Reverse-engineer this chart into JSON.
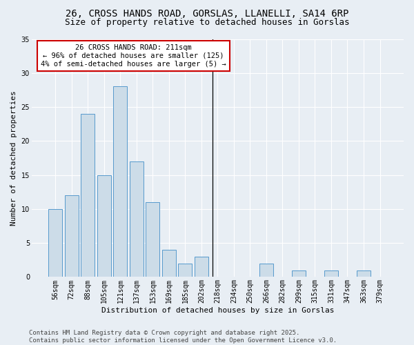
{
  "title1": "26, CROSS HANDS ROAD, GORSLAS, LLANELLI, SA14 6RP",
  "title2": "Size of property relative to detached houses in Gorslas",
  "xlabel": "Distribution of detached houses by size in Gorslas",
  "ylabel": "Number of detached properties",
  "bar_labels": [
    "56sqm",
    "72sqm",
    "88sqm",
    "105sqm",
    "121sqm",
    "137sqm",
    "153sqm",
    "169sqm",
    "185sqm",
    "202sqm",
    "218sqm",
    "234sqm",
    "250sqm",
    "266sqm",
    "282sqm",
    "299sqm",
    "315sqm",
    "331sqm",
    "347sqm",
    "363sqm",
    "379sqm"
  ],
  "bar_values": [
    10,
    12,
    24,
    15,
    28,
    17,
    11,
    4,
    2,
    3,
    0,
    0,
    0,
    2,
    0,
    1,
    0,
    1,
    0,
    1,
    0
  ],
  "bar_color": "#ccdce8",
  "bar_edge_color": "#5599cc",
  "background_color": "#e8eef4",
  "grid_color": "#ffffff",
  "annotation_text": "26 CROSS HANDS ROAD: 211sqm\n← 96% of detached houses are smaller (125)\n4% of semi-detached houses are larger (5) →",
  "annotation_box_color": "#ffffff",
  "annotation_box_edge_color": "#cc0000",
  "vline_x_index": 9.67,
  "ylim": [
    0,
    35
  ],
  "yticks": [
    0,
    5,
    10,
    15,
    20,
    25,
    30,
    35
  ],
  "footer_text": "Contains HM Land Registry data © Crown copyright and database right 2025.\nContains public sector information licensed under the Open Government Licence v3.0.",
  "title_fontsize": 10,
  "subtitle_fontsize": 9,
  "axis_label_fontsize": 8,
  "tick_fontsize": 7,
  "annotation_fontsize": 7.5,
  "footer_fontsize": 6.5
}
